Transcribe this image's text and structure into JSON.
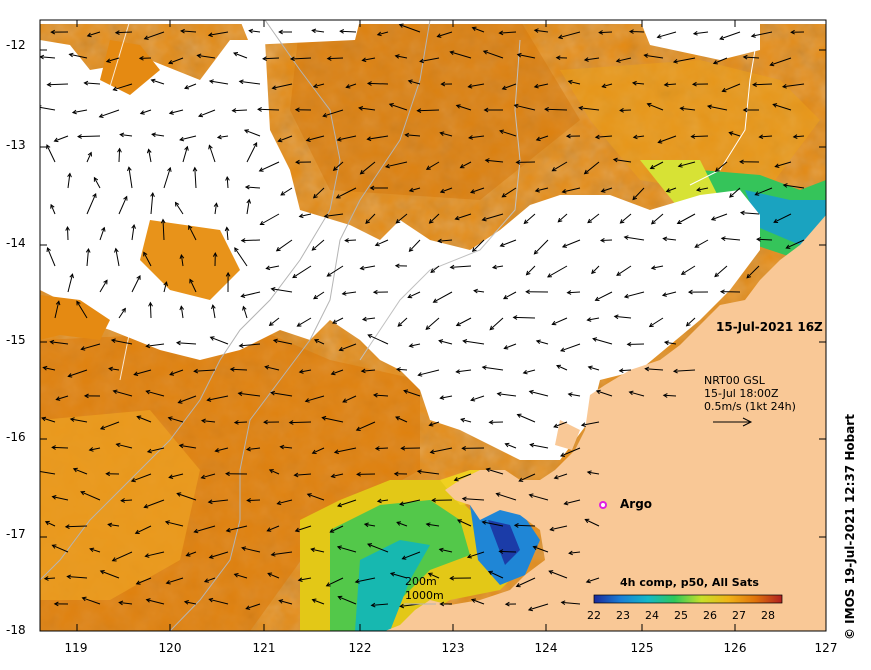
{
  "map": {
    "date_label": "15-Jul-2021 16Z",
    "nrt_lines": [
      "NRT00 GSL",
      "15-Jul 18:00Z",
      "0.5m/s (1kt 24h)"
    ],
    "argo_label": "Argo",
    "depth_labels": [
      "200m",
      "1000m"
    ],
    "colorbar": {
      "title": "4h comp, p50, All Sats",
      "ticks": [
        "22",
        "23",
        "24",
        "25",
        "26",
        "27",
        "28"
      ],
      "colors": [
        "#1b2a9c",
        "#1a7fd6",
        "#14b8c8",
        "#2ec85a",
        "#c8e02a",
        "#f0b418",
        "#e0740c",
        "#b02020"
      ]
    },
    "y_ticks": [
      "-12",
      "-13",
      "-14",
      "-15",
      "-16",
      "-17",
      "-18"
    ],
    "x_ticks": [
      "119",
      "120",
      "121",
      "122",
      "123",
      "124",
      "125",
      "126",
      "127"
    ],
    "copyright": "© IMOS 19-Jul-2021 12:37 Hobart",
    "colors": {
      "land": "#f9c896",
      "ocean_warm": "#e0800c",
      "ocean_mid": "#f0a010",
      "cloud": "#ffffff",
      "argo": "#e020e0"
    }
  }
}
